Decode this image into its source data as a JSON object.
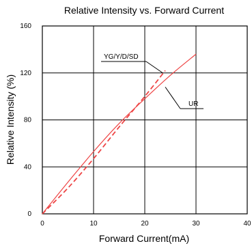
{
  "chart_data": {
    "type": "line",
    "title": "Relative Intensity vs. Forward Current",
    "xlabel": "Forward Current(mA)",
    "ylabel": "Relative Intensity (%)",
    "xlim": [
      0,
      40
    ],
    "ylim": [
      0,
      160
    ],
    "x_ticks": [
      0,
      10,
      20,
      30,
      40
    ],
    "y_ticks": [
      0,
      40,
      80,
      120,
      160
    ],
    "x_tick_labels": [
      "0",
      "10",
      "20",
      "30",
      "40"
    ],
    "y_tick_labels": [
      "0",
      "40",
      "80",
      "120",
      "160"
    ],
    "grid": true,
    "series": [
      {
        "name": "YG/Y/D/SD",
        "style": "solid",
        "color": "#ee4444",
        "x": [
          0,
          5,
          10,
          15,
          20,
          25,
          30
        ],
        "y": [
          0,
          27,
          53,
          77,
          98,
          118,
          136
        ]
      },
      {
        "name": "UR",
        "style": "dashed",
        "color": "#ee4444",
        "x": [
          0,
          5,
          10,
          15,
          20,
          24
        ],
        "y": [
          0,
          22,
          47,
          74,
          100,
          122
        ]
      }
    ],
    "annotations": [
      {
        "text": "YG/Y/D/SD",
        "target_series": 0,
        "target_x": 23.5,
        "target_y": 120
      },
      {
        "text": "UR",
        "target_series": 0,
        "target_x": 24,
        "target_y": 108
      }
    ]
  }
}
